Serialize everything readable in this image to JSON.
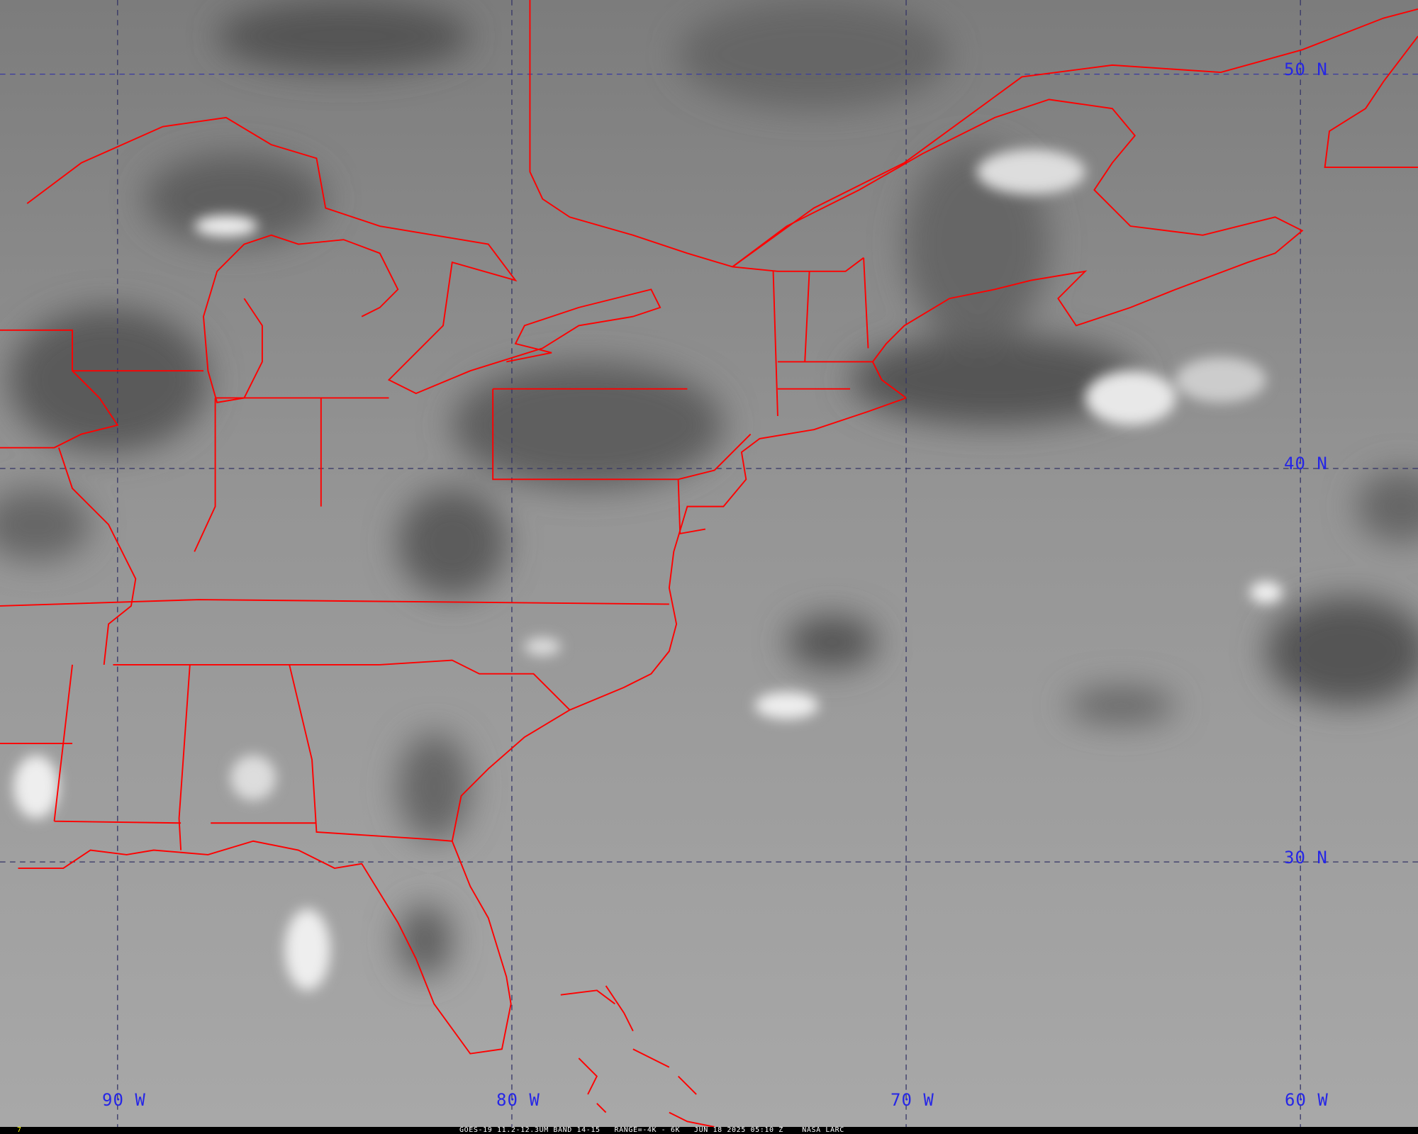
{
  "grid_labels": {
    "lon": [
      "90 W",
      "80 W",
      "70 W",
      "60 W"
    ],
    "lat": [
      "50 N",
      "40 N",
      "30 N"
    ]
  },
  "caption": {
    "frame": "7",
    "text": "GOES-19 11.2-12.3UM BAND 14-15   RANGE=-4K - 6K   JUN 18 2025 05:10 Z    NASA LARC"
  },
  "colors": {
    "borders": "#ff0000",
    "grid": "#2626e6",
    "caption_text": "#ffffff",
    "frame_number": "#ffff00"
  }
}
